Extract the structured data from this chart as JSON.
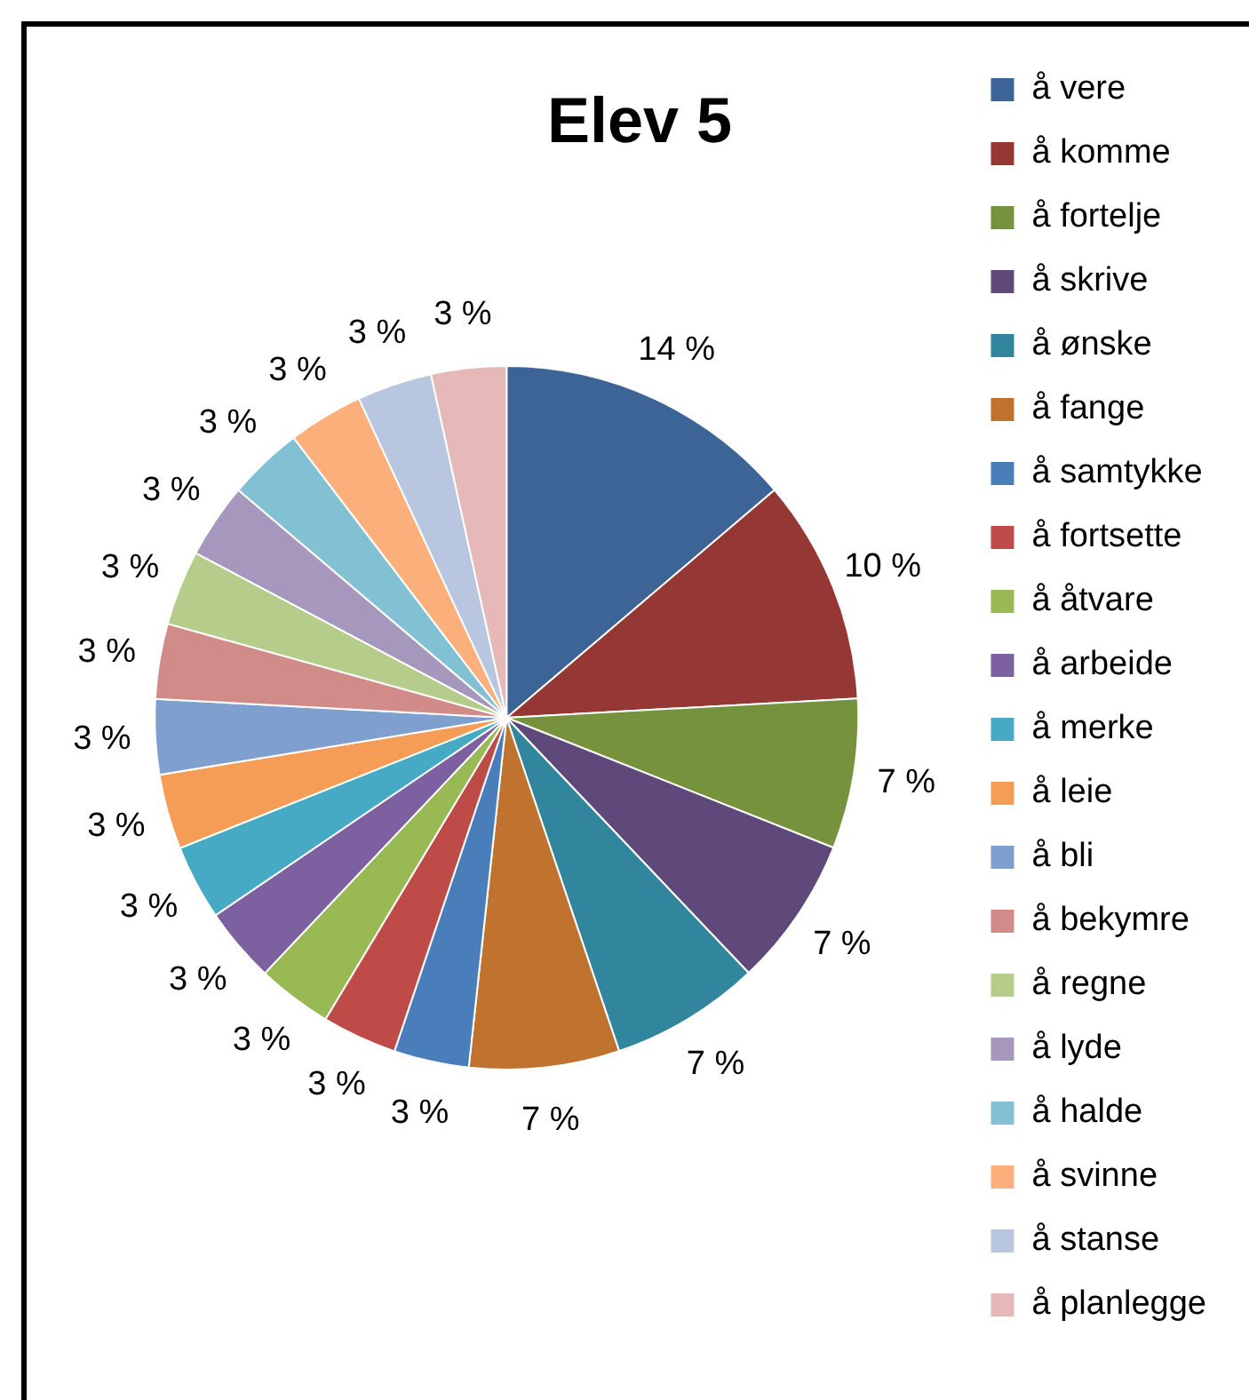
{
  "chart_data": {
    "type": "pie",
    "title": "Elev 5",
    "categories": [
      "å vere",
      "å komme",
      "å fortelje",
      "å skrive",
      "å ønske",
      "å fange",
      "å samtykke",
      "å fortsette",
      "å åtvare",
      "å arbeide",
      "å merke",
      "å leie",
      "å bli",
      "å bekymre",
      "å regne",
      "å lyde",
      "å halde",
      "å svinne",
      "å stanse",
      "å planlegge"
    ],
    "values": [
      13.79,
      10.34,
      6.9,
      6.9,
      6.9,
      6.9,
      3.45,
      3.45,
      3.45,
      3.45,
      3.45,
      3.45,
      3.45,
      3.45,
      3.45,
      3.45,
      3.45,
      3.45,
      3.45,
      3.45
    ],
    "value_labels": [
      "14 %",
      "10 %",
      "7 %",
      "7 %",
      "7 %",
      "7 %",
      "3 %",
      "3 %",
      "3 %",
      "3 %",
      "3 %",
      "3 %",
      "3 %",
      "3 %",
      "3 %",
      "3 %",
      "3 %",
      "3 %",
      "3 %",
      "3 %"
    ],
    "colors": [
      "#3c6496",
      "#953735",
      "#76923c",
      "#5f497a",
      "#31859c",
      "#c0722f",
      "#4a7ebb",
      "#be4b48",
      "#98b954",
      "#7d60a0",
      "#46aac5",
      "#f59d56",
      "#7f9fcf",
      "#d18b89",
      "#b5cc8a",
      "#a698bd",
      "#82c0d4",
      "#fbaf7b",
      "#b9c6e0",
      "#e6b9b8"
    ],
    "legend": "right"
  }
}
